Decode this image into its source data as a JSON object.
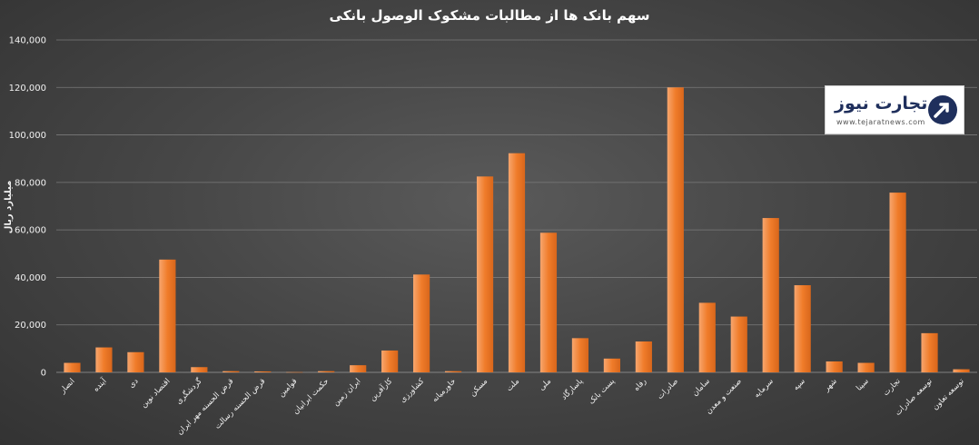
{
  "chart_data": {
    "type": "bar",
    "title": "سهم بانک ها از مطالبات مشکوک الوصول بانکی",
    "ylabel": "میلیارد ریال",
    "xlabel": "",
    "ylim": [
      0,
      140000
    ],
    "yticks": [
      0,
      20000,
      40000,
      60000,
      80000,
      100000,
      120000,
      140000
    ],
    "ytick_labels": [
      "0",
      "20,000",
      "40,000",
      "60,000",
      "80,000",
      "100,000",
      "120,000",
      "140,000"
    ],
    "grid": true,
    "legend": "none",
    "categories": [
      "انصار",
      "آینده",
      "دی",
      "اقتصاد نوین",
      "گردشگری",
      "قرض الحسنه مهر ایران",
      "قرض الحسنه رسالت",
      "قوامین",
      "حکمت ایرانیان",
      "ایران زمین",
      "کارآفرین",
      "کشاورزی",
      "خاورمیانه",
      "مسکن",
      "ملت",
      "ملی",
      "پاسارگاد",
      "پست بانک",
      "رفاه",
      "صادرات",
      "سامان",
      "صنعت و معدن",
      "سرمایه",
      "سپه",
      "شهر",
      "سینا",
      "تجارت",
      "توسعه صادرات",
      "توسعه تعاون"
    ],
    "values": [
      4000,
      10500,
      8500,
      47500,
      2200,
      500,
      400,
      100,
      500,
      3000,
      9200,
      41200,
      500,
      82500,
      92300,
      58800,
      14400,
      5800,
      13000,
      120000,
      29300,
      23500,
      65000,
      36700,
      4600,
      4000,
      75700,
      16500,
      1300
    ],
    "colors": {
      "bar": "#f07c2a",
      "bar_light": "#f7a66e",
      "grid": "#7a7a7a",
      "text": "#f2f2f2",
      "title": "#ffffff"
    }
  },
  "logo": {
    "name": "تجارت نیوز",
    "url": "www.tejaratnews.com"
  }
}
